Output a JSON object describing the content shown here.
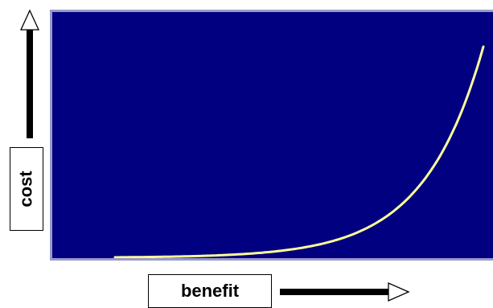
{
  "diagram": {
    "y_axis_label": "cost",
    "x_axis_label": "benefit",
    "curve_shape": "exponential",
    "colors": {
      "plot_background": "#000080",
      "plot_border": "#9a9ac8",
      "curve": "#ffff99",
      "arrow": "#000000"
    }
  }
}
